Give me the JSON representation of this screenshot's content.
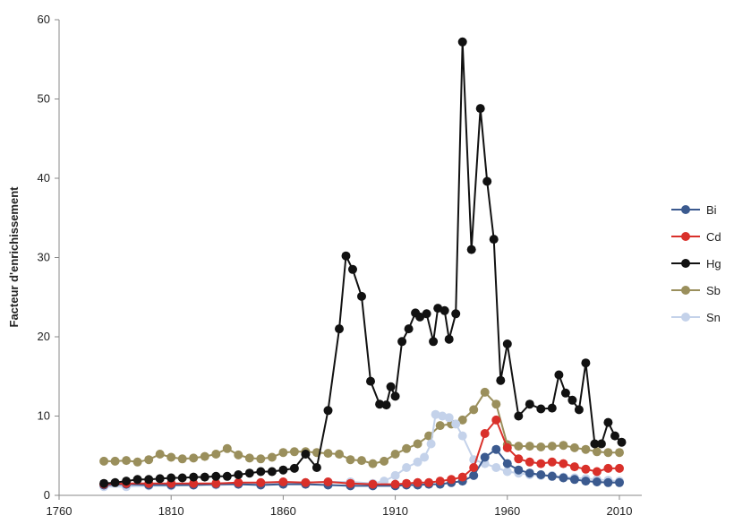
{
  "chart_data": {
    "type": "line",
    "title": "",
    "xlabel": "",
    "ylabel": "Facteur d'enrichissement",
    "xlim": [
      1760,
      2020
    ],
    "ylim": [
      0,
      60
    ],
    "xticks": [
      1760,
      1810,
      1860,
      1910,
      1960,
      2010
    ],
    "yticks": [
      0,
      10,
      20,
      30,
      40,
      50,
      60
    ],
    "grid": false,
    "legend_position": "right",
    "series": [
      {
        "name": "Bi",
        "color": "#3b5a8f",
        "x": [
          1780,
          1790,
          1800,
          1810,
          1820,
          1830,
          1840,
          1850,
          1860,
          1870,
          1880,
          1890,
          1900,
          1910,
          1915,
          1920,
          1925,
          1930,
          1935,
          1940,
          1945,
          1950,
          1955,
          1960,
          1965,
          1970,
          1975,
          1980,
          1985,
          1990,
          1995,
          2000,
          2005,
          2010
        ],
        "y": [
          1.3,
          1.4,
          1.3,
          1.3,
          1.3,
          1.4,
          1.4,
          1.3,
          1.4,
          1.4,
          1.3,
          1.2,
          1.2,
          1.2,
          1.3,
          1.3,
          1.4,
          1.4,
          1.6,
          1.8,
          2.5,
          4.8,
          5.8,
          4.0,
          3.2,
          2.8,
          2.6,
          2.4,
          2.2,
          2.0,
          1.8,
          1.7,
          1.6,
          1.6
        ]
      },
      {
        "name": "Cd",
        "color": "#d9302a",
        "x": [
          1780,
          1790,
          1800,
          1810,
          1820,
          1830,
          1840,
          1850,
          1860,
          1870,
          1880,
          1890,
          1900,
          1910,
          1915,
          1920,
          1925,
          1930,
          1935,
          1940,
          1945,
          1950,
          1955,
          1960,
          1965,
          1970,
          1975,
          1980,
          1985,
          1990,
          1995,
          2000,
          2005,
          2010
        ],
        "y": [
          1.4,
          1.5,
          1.5,
          1.5,
          1.5,
          1.5,
          1.6,
          1.6,
          1.7,
          1.6,
          1.7,
          1.5,
          1.4,
          1.4,
          1.5,
          1.6,
          1.6,
          1.8,
          2.0,
          2.3,
          3.5,
          7.8,
          9.5,
          6.0,
          4.6,
          4.2,
          4.0,
          4.2,
          4.0,
          3.6,
          3.3,
          3.0,
          3.4,
          3.4
        ]
      },
      {
        "name": "Hg",
        "color": "#111111",
        "x": [
          1780,
          1785,
          1790,
          1795,
          1800,
          1805,
          1810,
          1815,
          1820,
          1825,
          1830,
          1835,
          1840,
          1845,
          1850,
          1855,
          1860,
          1865,
          1870,
          1875,
          1880,
          1885,
          1888,
          1891,
          1895,
          1899,
          1903,
          1906,
          1908,
          1910,
          1913,
          1916,
          1919,
          1921,
          1924,
          1927,
          1929,
          1932,
          1934,
          1937,
          1940,
          1944,
          1948,
          1951,
          1954,
          1957,
          1960,
          1965,
          1970,
          1975,
          1980,
          1983,
          1986,
          1989,
          1992,
          1995,
          1999,
          2002,
          2005,
          2008,
          2011
        ],
        "y": [
          1.5,
          1.6,
          1.8,
          2.0,
          2.0,
          2.1,
          2.2,
          2.2,
          2.3,
          2.3,
          2.4,
          2.4,
          2.6,
          2.8,
          3.0,
          3.0,
          3.2,
          3.4,
          5.2,
          3.5,
          10.7,
          21.0,
          30.2,
          28.5,
          25.1,
          14.4,
          11.5,
          11.4,
          13.7,
          12.5,
          19.4,
          21.0,
          23.0,
          22.5,
          22.9,
          19.4,
          23.6,
          23.3,
          19.7,
          22.9,
          57.2,
          31.0,
          48.8,
          39.6,
          32.3,
          14.5,
          19.1,
          10.0,
          11.5,
          10.9,
          11.0,
          15.2,
          12.9,
          12.0,
          10.8,
          16.7,
          6.5,
          6.5,
          9.2,
          7.5,
          6.7
        ]
      },
      {
        "name": "Sb",
        "color": "#9a8f5c",
        "x": [
          1780,
          1785,
          1790,
          1795,
          1800,
          1805,
          1810,
          1815,
          1820,
          1825,
          1830,
          1835,
          1840,
          1845,
          1850,
          1855,
          1860,
          1865,
          1870,
          1875,
          1880,
          1885,
          1890,
          1895,
          1900,
          1905,
          1910,
          1915,
          1920,
          1925,
          1930,
          1935,
          1940,
          1945,
          1950,
          1955,
          1960,
          1965,
          1970,
          1975,
          1980,
          1985,
          1990,
          1995,
          2000,
          2005,
          2010
        ],
        "y": [
          4.3,
          4.3,
          4.4,
          4.2,
          4.5,
          5.2,
          4.8,
          4.6,
          4.7,
          4.9,
          5.2,
          5.9,
          5.1,
          4.7,
          4.6,
          4.8,
          5.4,
          5.5,
          5.5,
          5.4,
          5.3,
          5.2,
          4.5,
          4.4,
          4.0,
          4.3,
          5.2,
          5.9,
          6.5,
          7.5,
          8.8,
          9.0,
          9.5,
          10.8,
          13.0,
          11.5,
          6.4,
          6.2,
          6.2,
          6.1,
          6.2,
          6.3,
          6.0,
          5.8,
          5.5,
          5.4,
          5.4
        ]
      },
      {
        "name": "Sn",
        "color": "#c4d2ea",
        "x": [
          1780,
          1790,
          1800,
          1810,
          1820,
          1830,
          1840,
          1850,
          1860,
          1870,
          1880,
          1890,
          1900,
          1905,
          1910,
          1915,
          1920,
          1923,
          1926,
          1928,
          1931,
          1934,
          1937,
          1940,
          1945,
          1950,
          1955,
          1960,
          1965,
          1970,
          1975,
          1980,
          1985,
          1990,
          1995,
          2000,
          2005,
          2010
        ],
        "y": [
          1.1,
          1.1,
          1.2,
          1.2,
          1.3,
          1.3,
          1.4,
          1.4,
          1.5,
          1.6,
          1.7,
          1.7,
          1.5,
          1.8,
          2.5,
          3.5,
          4.2,
          4.8,
          6.5,
          10.2,
          10.0,
          9.8,
          9.0,
          7.5,
          4.5,
          4.0,
          3.5,
          3.0,
          2.8,
          2.6,
          2.5,
          2.5,
          2.3,
          2.2,
          2.1,
          2.0,
          1.9,
          1.8
        ]
      }
    ]
  }
}
